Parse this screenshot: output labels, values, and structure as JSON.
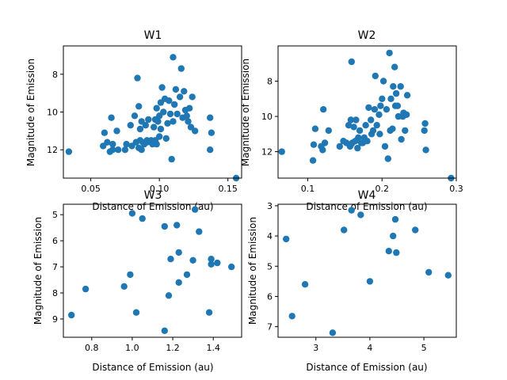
{
  "colors": {
    "marker": "#1f77b4",
    "axes": "#000000",
    "background": "#ffffff"
  },
  "chart_data": [
    {
      "type": "scatter",
      "title": "W1",
      "xlabel": "Distance of Emission (au)",
      "ylabel": "Magnitude of Emission",
      "xlim": [
        0.03,
        0.16
      ],
      "ylim": [
        13.5,
        6.5
      ],
      "y_inverted": true,
      "xticks": [
        0.05,
        0.1,
        0.15
      ],
      "xtick_labels": [
        "0.05",
        "0.10",
        "0.15"
      ],
      "yticks": [
        8,
        10,
        12
      ],
      "ytick_labels": [
        "8",
        "10",
        "12"
      ],
      "grid": false,
      "x": [
        0.034,
        0.059,
        0.06,
        0.062,
        0.064,
        0.065,
        0.066,
        0.066,
        0.069,
        0.07,
        0.075,
        0.076,
        0.079,
        0.08,
        0.082,
        0.083,
        0.084,
        0.085,
        0.085,
        0.086,
        0.086,
        0.087,
        0.087,
        0.088,
        0.089,
        0.09,
        0.091,
        0.091,
        0.092,
        0.094,
        0.095,
        0.096,
        0.097,
        0.097,
        0.098,
        0.098,
        0.099,
        0.1,
        0.1,
        0.101,
        0.101,
        0.102,
        0.103,
        0.104,
        0.105,
        0.106,
        0.107,
        0.108,
        0.109,
        0.11,
        0.11,
        0.111,
        0.112,
        0.113,
        0.115,
        0.116,
        0.117,
        0.118,
        0.119,
        0.12,
        0.121,
        0.122,
        0.123,
        0.124,
        0.126,
        0.137,
        0.137,
        0.138,
        0.156
      ],
      "y": [
        12.1,
        11.8,
        11.1,
        11.6,
        12.1,
        10.3,
        12.0,
        11.7,
        11.0,
        12.0,
        12.0,
        11.7,
        10.7,
        11.8,
        10.2,
        11.6,
        8.2,
        9.7,
        11.9,
        11.5,
        10.9,
        12.0,
        10.5,
        11.6,
        11.7,
        10.7,
        11.6,
        11.5,
        10.4,
        11.5,
        11.7,
        10.8,
        11.5,
        10.4,
        9.8,
        11.7,
        10.5,
        10.2,
        11.3,
        10.9,
        9.5,
        8.7,
        10.0,
        9.3,
        11.4,
        10.6,
        9.4,
        10.1,
        12.5,
        7.1,
        10.5,
        9.6,
        8.8,
        10.1,
        9.2,
        7.7,
        10.3,
        8.9,
        9.9,
        10.2,
        10.5,
        9.8,
        10.8,
        9.2,
        11.0,
        10.3,
        12.0,
        11.1,
        13.5
      ]
    },
    {
      "type": "scatter",
      "title": "W2",
      "xlabel": "Distance of Emission (au)",
      "ylabel": "Magnitude of Emission",
      "xlim": [
        0.06,
        0.3
      ],
      "ylim": [
        13.5,
        6.0
      ],
      "y_inverted": true,
      "xticks": [
        0.1,
        0.2,
        0.3
      ],
      "xtick_labels": [
        "0.1",
        "0.2",
        "0.3"
      ],
      "yticks": [
        8,
        10,
        12
      ],
      "ytick_labels": [
        "8",
        "10",
        "12"
      ],
      "grid": false,
      "x": [
        0.065,
        0.107,
        0.108,
        0.11,
        0.118,
        0.12,
        0.121,
        0.123,
        0.128,
        0.143,
        0.148,
        0.152,
        0.155,
        0.157,
        0.158,
        0.158,
        0.159,
        0.16,
        0.162,
        0.164,
        0.165,
        0.167,
        0.168,
        0.17,
        0.172,
        0.174,
        0.176,
        0.178,
        0.18,
        0.182,
        0.185,
        0.186,
        0.188,
        0.19,
        0.191,
        0.193,
        0.196,
        0.197,
        0.198,
        0.2,
        0.202,
        0.204,
        0.206,
        0.208,
        0.21,
        0.211,
        0.212,
        0.214,
        0.215,
        0.217,
        0.218,
        0.219,
        0.221,
        0.222,
        0.225,
        0.226,
        0.228,
        0.229,
        0.231,
        0.233,
        0.234,
        0.257,
        0.258,
        0.259,
        0.293
      ],
      "y": [
        12.0,
        12.5,
        11.6,
        10.7,
        11.7,
        11.9,
        9.6,
        11.5,
        10.8,
        11.7,
        11.4,
        11.5,
        10.5,
        11.7,
        11.6,
        10.2,
        6.9,
        11.5,
        10.6,
        11.4,
        10.2,
        11.8,
        11.2,
        10.8,
        11.5,
        11.5,
        11.2,
        10.5,
        11.4,
        9.5,
        10.2,
        11.0,
        10.8,
        9.6,
        7.7,
        10.5,
        9.9,
        11.0,
        9.4,
        9.0,
        8.0,
        11.7,
        9.6,
        12.4,
        6.4,
        10.8,
        9.0,
        10.7,
        8.3,
        7.2,
        9.4,
        8.7,
        9.4,
        10.0,
        8.3,
        11.3,
        10.0,
        9.8,
        10.8,
        9.9,
        8.8,
        10.8,
        10.4,
        11.9,
        13.5
      ]
    },
    {
      "type": "scatter",
      "title": "W3",
      "xlabel": "Distance of Emission (au)",
      "ylabel": "Magnitude of Emission",
      "xlim": [
        0.66,
        1.54
      ],
      "ylim": [
        9.7,
        4.6
      ],
      "y_inverted": true,
      "xticks": [
        0.8,
        1.0,
        1.2,
        1.4
      ],
      "xtick_labels": [
        "0.8",
        "1.0",
        "1.2",
        "1.4"
      ],
      "yticks": [
        5,
        6,
        7,
        8,
        9
      ],
      "ytick_labels": [
        "5",
        "6",
        "7",
        "8",
        "9"
      ],
      "grid": false,
      "x": [
        0.7,
        0.77,
        0.96,
        0.99,
        1.0,
        1.02,
        1.05,
        1.16,
        1.16,
        1.18,
        1.19,
        1.22,
        1.23,
        1.23,
        1.27,
        1.3,
        1.31,
        1.33,
        1.38,
        1.39,
        1.39,
        1.42,
        1.49
      ],
      "y": [
        8.85,
        7.85,
        7.75,
        7.3,
        4.95,
        8.75,
        5.15,
        9.45,
        5.45,
        8.1,
        6.7,
        5.4,
        7.6,
        6.45,
        7.3,
        6.75,
        4.8,
        5.65,
        8.75,
        6.7,
        6.9,
        6.85,
        7.0
      ]
    },
    {
      "type": "scatter",
      "title": "W4",
      "xlabel": "Distance of Emission (au)",
      "ylabel": "Magnitude of Emission",
      "xlim": [
        2.3,
        5.6
      ],
      "ylim": [
        7.35,
        2.95
      ],
      "y_inverted": true,
      "xticks": [
        3,
        4,
        5
      ],
      "xtick_labels": [
        "3",
        "4",
        "5"
      ],
      "yticks": [
        3,
        4,
        5,
        6,
        7
      ],
      "ytick_labels": [
        "3",
        "4",
        "5",
        "6",
        "7"
      ],
      "grid": false,
      "x": [
        2.45,
        2.56,
        2.8,
        3.31,
        3.52,
        3.66,
        3.83,
        4.0,
        4.35,
        4.43,
        4.47,
        4.49,
        4.84,
        5.09,
        5.45
      ],
      "y": [
        4.1,
        6.65,
        5.6,
        7.2,
        3.8,
        3.15,
        3.3,
        5.5,
        4.5,
        4.0,
        3.45,
        4.55,
        3.8,
        5.2,
        5.3
      ]
    }
  ]
}
